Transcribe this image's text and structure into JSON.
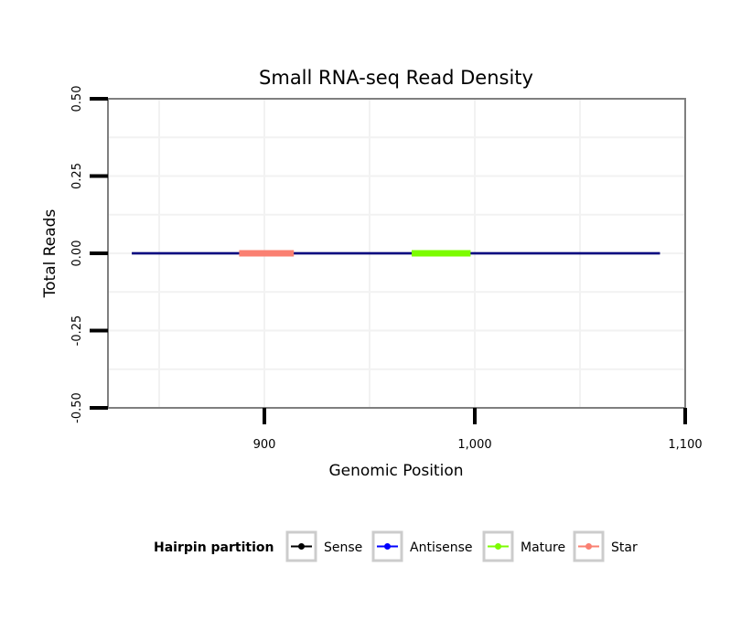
{
  "chart_data": {
    "type": "line",
    "title": "Small RNA-seq Read Density",
    "xlabel": "Genomic Position",
    "ylabel": "Total Reads",
    "xlim": [
      825,
      1100
    ],
    "ylim": [
      -0.5,
      0.5
    ],
    "x_ticks": [
      900,
      1000,
      1100
    ],
    "x_tick_labels": [
      "900",
      "1,000",
      "1,100"
    ],
    "y_ticks": [
      -0.5,
      -0.25,
      0,
      0.25,
      0.5
    ],
    "y_tick_labels": [
      "-0.50",
      "-0.25",
      "0.00",
      "0.25",
      "0.50"
    ],
    "grid": true,
    "legend": {
      "title": "Hairpin partition",
      "position": "bottom",
      "entries": [
        {
          "name": "Sense",
          "color": "#000000"
        },
        {
          "name": "Antisense",
          "color": "#0000ff"
        },
        {
          "name": "Mature",
          "color": "#7cfc00"
        },
        {
          "name": "Star",
          "color": "#fa8072"
        }
      ]
    },
    "series": [
      {
        "name": "Sense",
        "color": "#000000",
        "x": [
          837,
          1088
        ],
        "y": [
          0,
          0
        ]
      },
      {
        "name": "Antisense",
        "color": "#0000ff",
        "x": [
          837,
          1088
        ],
        "y": [
          0,
          0
        ]
      },
      {
        "name": "Mature",
        "color": "#7cfc00",
        "x": [
          970,
          998
        ],
        "y": [
          0,
          0
        ]
      },
      {
        "name": "Star",
        "color": "#fa8072",
        "x": [
          888,
          914
        ],
        "y": [
          0,
          0
        ]
      }
    ]
  }
}
